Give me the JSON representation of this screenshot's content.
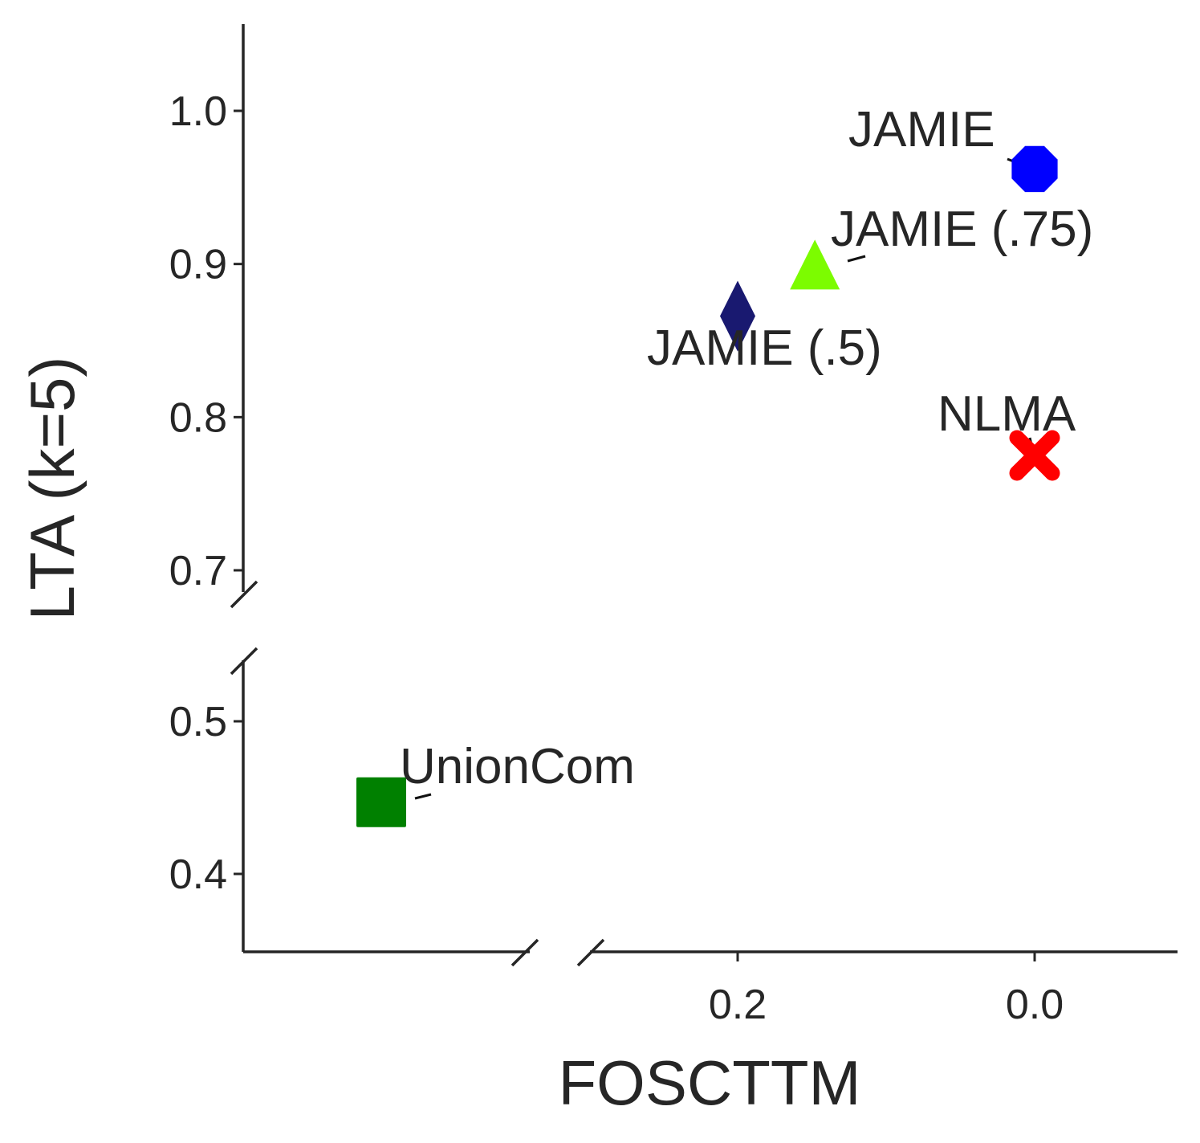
{
  "chart_data": {
    "type": "scatter",
    "title": "",
    "xlabel": "FOSCTTM",
    "ylabel": "LTA (k=5)",
    "x_inverted": true,
    "x_broken_axis": true,
    "y_broken_axis": true,
    "grid": false,
    "xlim_main": [
      0.3,
      -0.095
    ],
    "ylim_upper": [
      0.687,
      1.056
    ],
    "ylim_lower": [
      0.35,
      0.536
    ],
    "xticks": [
      {
        "value": 0.2,
        "label": "0.2"
      },
      {
        "value": 0.0,
        "label": "0.0"
      }
    ],
    "yticks_upper": [
      {
        "value": 0.7,
        "label": "0.7"
      },
      {
        "value": 0.8,
        "label": "0.8"
      },
      {
        "value": 0.9,
        "label": "0.9"
      },
      {
        "value": 1.0,
        "label": "1.0"
      }
    ],
    "yticks_lower": [
      {
        "value": 0.4,
        "label": "0.4"
      },
      {
        "value": 0.5,
        "label": "0.5"
      }
    ],
    "points": [
      {
        "name": "JAMIE",
        "x": 0.0,
        "y": 0.962,
        "marker": "octagon",
        "color": "#0000ff"
      },
      {
        "name": "JAMIE (.75)",
        "x": 0.148,
        "y": 0.897,
        "marker": "triangle",
        "color": "#7cfc00"
      },
      {
        "name": "JAMIE (.5)",
        "x": 0.2,
        "y": 0.866,
        "marker": "diamond",
        "color": "#191970"
      },
      {
        "name": "NLMA",
        "x": 0.0,
        "y": 0.775,
        "marker": "x",
        "color": "#ff0000"
      },
      {
        "name": "UnionCom",
        "x_note": "beyond x-axis break",
        "y": 0.447,
        "marker": "square",
        "color": "#008000"
      }
    ]
  }
}
